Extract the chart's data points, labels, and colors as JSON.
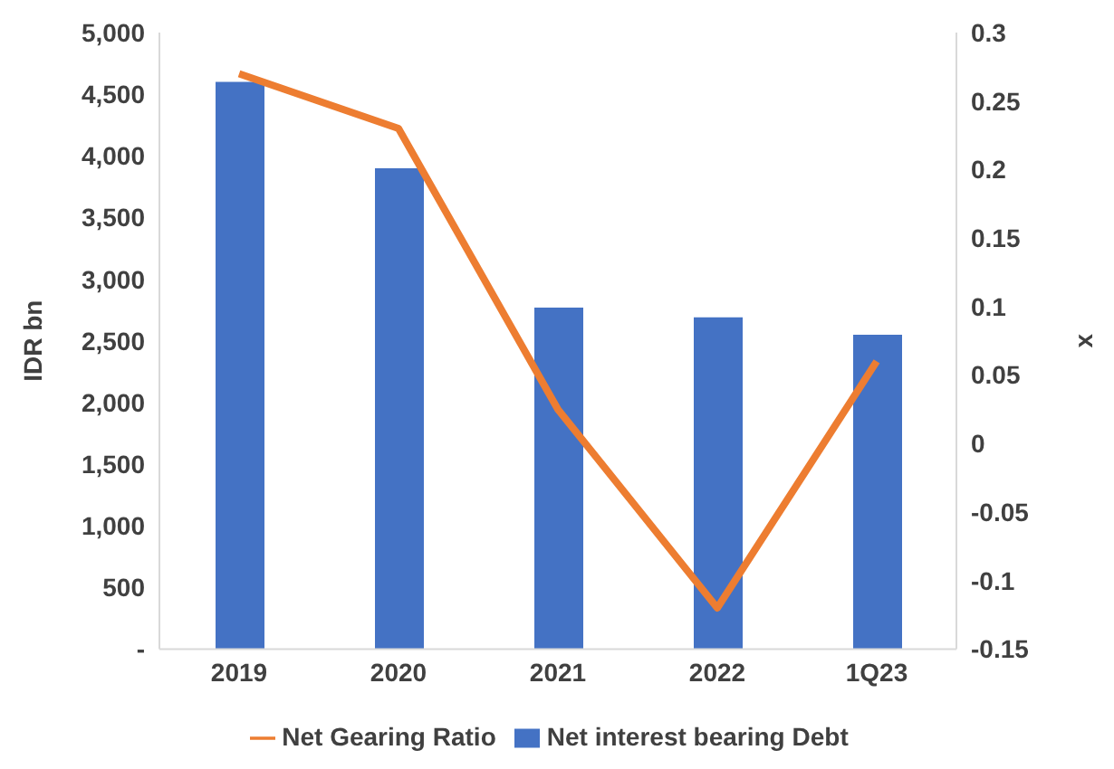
{
  "chart_data": {
    "type": "bar",
    "ylabel": "IDR bn",
    "y2label": "x",
    "categories": [
      "2019",
      "2020",
      "2021",
      "2022",
      "1Q23"
    ],
    "series": [
      {
        "name": "Net interest bearing Debt",
        "color": "#4472c4",
        "values": [
          4600,
          3900,
          2770,
          2690,
          2550
        ]
      },
      {
        "name": "Net Gearing Ratio",
        "type": "line",
        "axis": "y2",
        "color": "#ed7d31",
        "values": [
          0.27,
          0.23,
          0.025,
          -0.12,
          0.06
        ]
      }
    ],
    "ylim": [
      0,
      5000
    ],
    "yticks": [
      {
        "value": 0,
        "label": "-"
      },
      {
        "value": 500,
        "label": "500"
      },
      {
        "value": 1000,
        "label": "1,000"
      },
      {
        "value": 1500,
        "label": "1,500"
      },
      {
        "value": 2000,
        "label": "2,000"
      },
      {
        "value": 2500,
        "label": "2,500"
      },
      {
        "value": 3000,
        "label": "3,000"
      },
      {
        "value": 3500,
        "label": "3,500"
      },
      {
        "value": 4000,
        "label": "4,000"
      },
      {
        "value": 4500,
        "label": "4,500"
      },
      {
        "value": 5000,
        "label": "5,000"
      }
    ],
    "y2lim": [
      -0.15,
      0.3
    ],
    "y2ticks": [
      -0.15,
      -0.1,
      -0.05,
      0,
      0.05,
      0.1,
      0.15,
      0.2,
      0.25,
      0.3
    ],
    "grid": false,
    "legend": "bottom",
    "marker": "none"
  }
}
